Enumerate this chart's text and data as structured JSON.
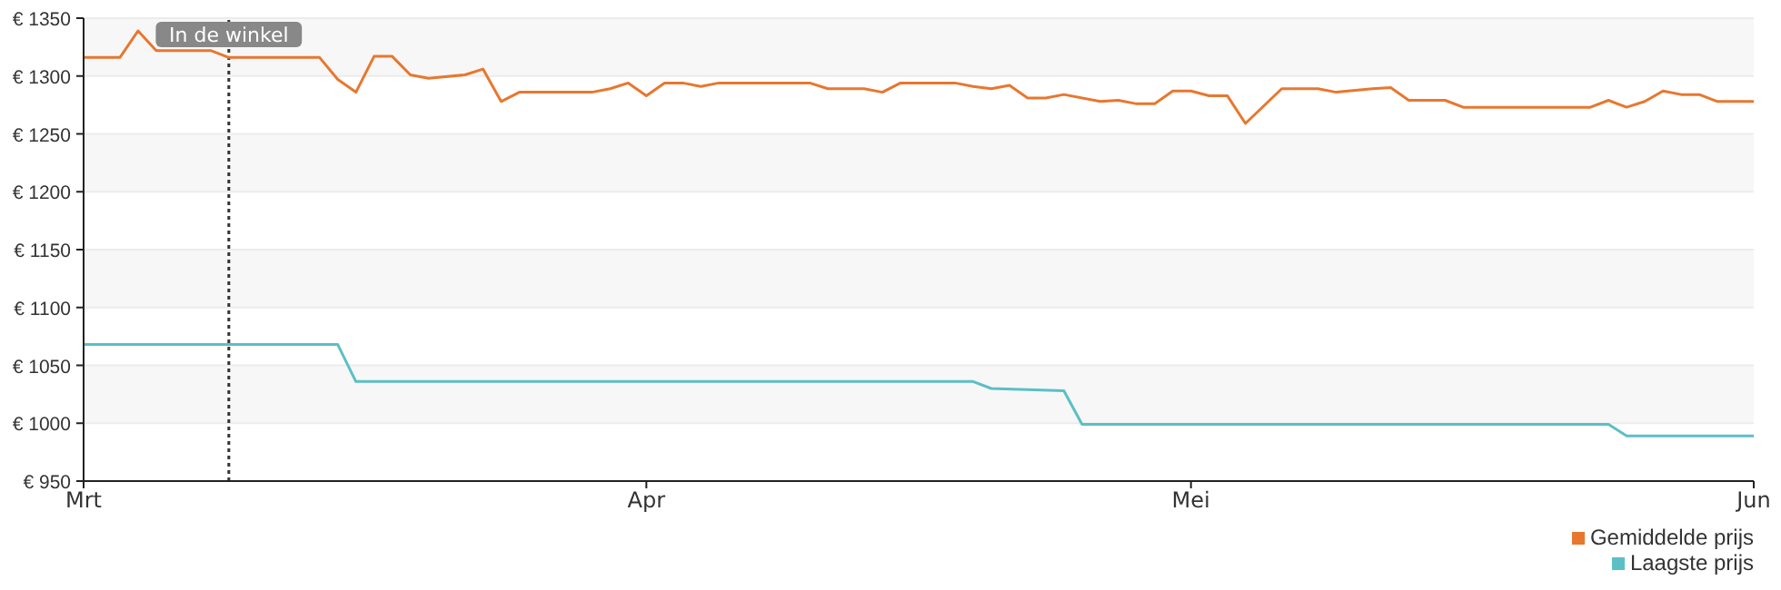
{
  "chart_data": {
    "type": "line",
    "ylim": [
      950,
      1350
    ],
    "yticks": [
      {
        "value": 950,
        "label": "€ 950"
      },
      {
        "value": 1000,
        "label": "€ 1000"
      },
      {
        "value": 1050,
        "label": "€ 1050"
      },
      {
        "value": 1100,
        "label": "€ 1100"
      },
      {
        "value": 1150,
        "label": "€ 1150"
      },
      {
        "value": 1200,
        "label": "€ 1200"
      },
      {
        "value": 1250,
        "label": "€ 1250"
      },
      {
        "value": 1300,
        "label": "€ 1300"
      },
      {
        "value": 1350,
        "label": "€ 1350"
      }
    ],
    "xlim": [
      "--03-01",
      "--06-01"
    ],
    "xticks": [
      {
        "value": "--03-01",
        "label": "Mrt"
      },
      {
        "value": "--04-01",
        "label": "Apr"
      },
      {
        "value": "--05-01",
        "label": "Mei"
      },
      {
        "value": "--06-01",
        "label": "Jun"
      }
    ],
    "grid": "y",
    "legend": "bottom right",
    "marker": "none",
    "line_style": "solid",
    "ref_lines": [
      {
        "axis": "x",
        "value": "--03-09",
        "label": "In de winkel",
        "line_style": "dotted",
        "color": "#333333"
      }
    ],
    "series": [
      {
        "name": "Gemiddelde prijs",
        "color": "#e8772e",
        "x": [
          "--03-01",
          "--03-03",
          "--03-04",
          "--03-05",
          "--03-08",
          "--03-09",
          "--03-14",
          "--03-15",
          "--03-16",
          "--03-17",
          "--03-18",
          "--03-19",
          "--03-20",
          "--03-22",
          "--03-23",
          "--03-24",
          "--03-25",
          "--03-29",
          "--03-30",
          "--03-31",
          "--04-01",
          "--04-02",
          "--04-03",
          "--04-04",
          "--04-05",
          "--04-10",
          "--04-11",
          "--04-13",
          "--04-14",
          "--04-15",
          "--04-18",
          "--04-19",
          "--04-20",
          "--04-21",
          "--04-22",
          "--04-23",
          "--04-24",
          "--04-26",
          "--04-27",
          "--04-28",
          "--04-29",
          "--04-30",
          "--05-01",
          "--05-02",
          "--05-03",
          "--05-04",
          "--05-06",
          "--05-08",
          "--05-09",
          "--05-11",
          "--05-12",
          "--05-13",
          "--05-15",
          "--05-16",
          "--05-23",
          "--05-24",
          "--05-25",
          "--05-26",
          "--05-27",
          "--05-28",
          "--05-29",
          "--05-30",
          "--06-01"
        ],
        "values": [
          1316,
          1316,
          1339,
          1322,
          1322,
          1316,
          1316,
          1297,
          1286,
          1317,
          1317,
          1301,
          1298,
          1301,
          1306,
          1278,
          1286,
          1286,
          1289,
          1294,
          1283,
          1294,
          1294,
          1291,
          1294,
          1294,
          1289,
          1289,
          1286,
          1294,
          1294,
          1291,
          1289,
          1292,
          1281,
          1281,
          1284,
          1278,
          1279,
          1276,
          1276,
          1287,
          1287,
          1283,
          1283,
          1259,
          1289,
          1289,
          1286,
          1289,
          1290,
          1279,
          1279,
          1273,
          1273,
          1279,
          1273,
          1278,
          1287,
          1284,
          1284,
          1278,
          1278
        ]
      },
      {
        "name": "Laagste prijs",
        "color": "#5bbfc6",
        "x": [
          "--03-01",
          "--03-15",
          "--03-16",
          "--04-19",
          "--04-20",
          "--04-24",
          "--04-25",
          "--05-24",
          "--05-25",
          "--06-01"
        ],
        "values": [
          1068,
          1068,
          1036,
          1036,
          1030,
          1028,
          999,
          999,
          989,
          989
        ]
      }
    ]
  }
}
